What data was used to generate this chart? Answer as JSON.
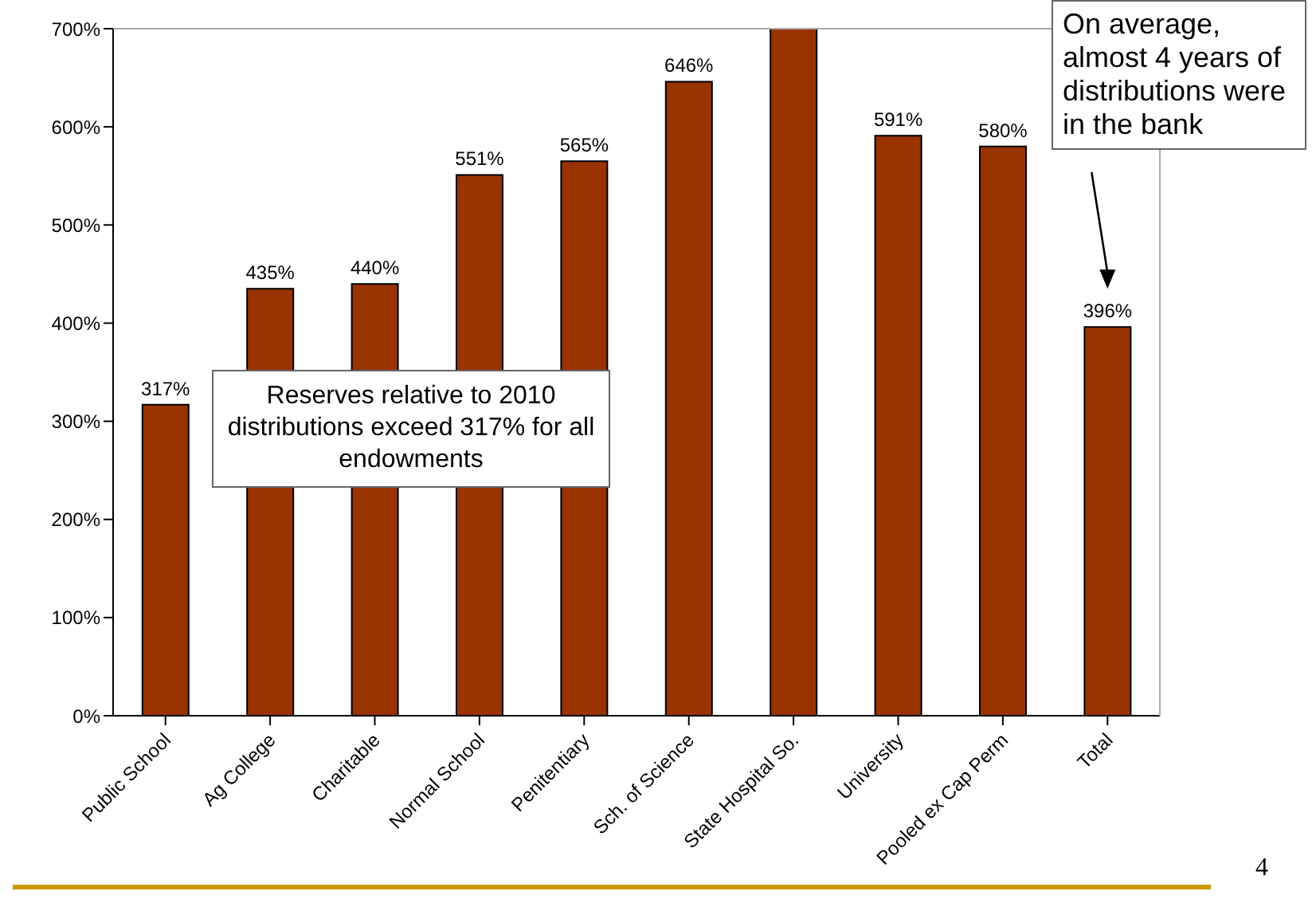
{
  "chart_data": {
    "type": "bar",
    "categories": [
      "Public School",
      "Ag College",
      "Charitable",
      "Normal School",
      "Penitentiary",
      "Sch. of Science",
      "State Hospital So.",
      "University",
      "Pooled ex  Cap Perm",
      "Total"
    ],
    "values": [
      317,
      435,
      440,
      551,
      565,
      646,
      700,
      591,
      580,
      396
    ],
    "value_labels": [
      "317%",
      "435%",
      "440%",
      "551%",
      "565%",
      "646%",
      null,
      "591%",
      "580%",
      "396%"
    ],
    "color": "#993300",
    "ylim": [
      0,
      700
    ],
    "yticks": [
      {
        "value": 0,
        "label": "0%"
      },
      {
        "value": 100,
        "label": "100%"
      },
      {
        "value": 200,
        "label": "200%"
      },
      {
        "value": 300,
        "label": "300%"
      },
      {
        "value": 400,
        "label": "400%"
      },
      {
        "value": 500,
        "label": "500%"
      },
      {
        "value": 600,
        "label": "600%"
      },
      {
        "value": 700,
        "label": "700%"
      }
    ],
    "legend": false,
    "annotations": [
      "Reserves relative to 2010 distributions exceed 317% for all endowments",
      "On average, almost 4 years of distributions were in the bank",
      "4"
    ]
  }
}
